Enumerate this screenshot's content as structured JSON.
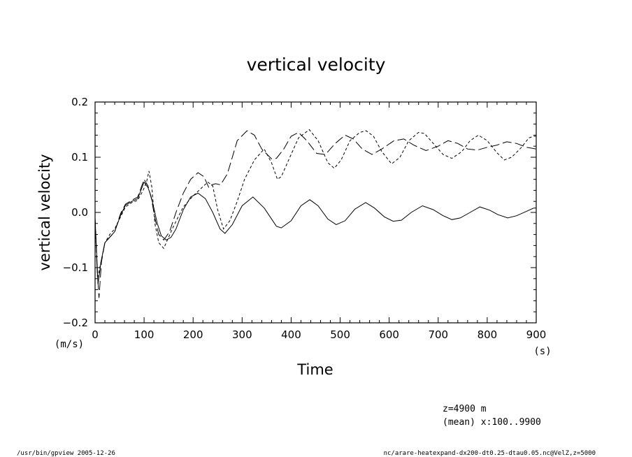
{
  "chart_data": {
    "type": "line",
    "title": "vertical velocity",
    "xlabel": "Time",
    "ylabel": "vertical velocity",
    "x_unit": "(s)",
    "y_unit": "(m/s)",
    "xlim": [
      0,
      900
    ],
    "ylim": [
      -0.2,
      0.2
    ],
    "xticks": [
      0,
      100,
      200,
      300,
      400,
      500,
      600,
      700,
      800,
      900
    ],
    "xtick_labels": [
      "0",
      "100",
      "200",
      "300",
      "400",
      "500",
      "600",
      "700",
      "800",
      "900"
    ],
    "yticks": [
      -0.2,
      -0.1,
      0.0,
      0.1,
      0.2
    ],
    "ytick_labels": [
      "−0.2",
      "−0.1",
      "0.0",
      "0.1",
      "0.2"
    ],
    "grid": false,
    "series": [
      {
        "style": "solid",
        "points": [
          [
            0,
            -0.01
          ],
          [
            6,
            -0.13
          ],
          [
            12,
            -0.09
          ],
          [
            20,
            -0.055
          ],
          [
            30,
            -0.045
          ],
          [
            40,
            -0.035
          ],
          [
            52,
            -0.005
          ],
          [
            62,
            0.013
          ],
          [
            75,
            0.02
          ],
          [
            87,
            0.025
          ],
          [
            100,
            0.055
          ],
          [
            108,
            0.045
          ],
          [
            114,
            0.03
          ],
          [
            120,
            0.008
          ],
          [
            127,
            -0.02
          ],
          [
            135,
            -0.042
          ],
          [
            145,
            -0.05
          ],
          [
            155,
            -0.045
          ],
          [
            165,
            -0.03
          ],
          [
            180,
            0.005
          ],
          [
            195,
            0.028
          ],
          [
            210,
            0.035
          ],
          [
            225,
            0.025
          ],
          [
            240,
            0.0
          ],
          [
            255,
            -0.03
          ],
          [
            265,
            -0.038
          ],
          [
            280,
            -0.022
          ],
          [
            300,
            0.012
          ],
          [
            322,
            0.028
          ],
          [
            345,
            0.008
          ],
          [
            370,
            -0.025
          ],
          [
            380,
            -0.028
          ],
          [
            400,
            -0.015
          ],
          [
            420,
            0.012
          ],
          [
            438,
            0.023
          ],
          [
            455,
            0.012
          ],
          [
            475,
            -0.012
          ],
          [
            492,
            -0.022
          ],
          [
            510,
            -0.015
          ],
          [
            530,
            0.006
          ],
          [
            552,
            0.018
          ],
          [
            570,
            0.008
          ],
          [
            590,
            -0.008
          ],
          [
            608,
            -0.016
          ],
          [
            625,
            -0.014
          ],
          [
            645,
            0.0
          ],
          [
            668,
            0.012
          ],
          [
            690,
            0.005
          ],
          [
            710,
            -0.006
          ],
          [
            728,
            -0.013
          ],
          [
            745,
            -0.01
          ],
          [
            765,
            0.0
          ],
          [
            785,
            0.01
          ],
          [
            805,
            0.004
          ],
          [
            822,
            -0.004
          ],
          [
            842,
            -0.01
          ],
          [
            860,
            -0.006
          ],
          [
            880,
            0.002
          ],
          [
            895,
            0.008
          ],
          [
            900,
            0.008
          ]
        ]
      },
      {
        "style": "dashed",
        "points": [
          [
            0,
            -0.015
          ],
          [
            5,
            -0.12
          ],
          [
            12,
            -0.09
          ],
          [
            20,
            -0.055
          ],
          [
            30,
            -0.04
          ],
          [
            40,
            -0.03
          ],
          [
            52,
            -0.008
          ],
          [
            62,
            0.01
          ],
          [
            75,
            0.018
          ],
          [
            87,
            0.022
          ],
          [
            98,
            0.04
          ],
          [
            105,
            0.055
          ],
          [
            110,
            0.075
          ],
          [
            116,
            0.045
          ],
          [
            122,
            -0.02
          ],
          [
            130,
            -0.055
          ],
          [
            140,
            -0.065
          ],
          [
            150,
            -0.045
          ],
          [
            160,
            -0.025
          ],
          [
            180,
            0.01
          ],
          [
            200,
            0.03
          ],
          [
            218,
            0.045
          ],
          [
            230,
            0.055
          ],
          [
            240,
            0.048
          ],
          [
            250,
            0.005
          ],
          [
            262,
            -0.03
          ],
          [
            275,
            -0.015
          ],
          [
            290,
            0.02
          ],
          [
            305,
            0.06
          ],
          [
            325,
            0.095
          ],
          [
            345,
            0.115
          ],
          [
            360,
            0.09
          ],
          [
            372,
            0.06
          ],
          [
            380,
            0.065
          ],
          [
            395,
            0.095
          ],
          [
            415,
            0.135
          ],
          [
            437,
            0.15
          ],
          [
            455,
            0.13
          ],
          [
            475,
            0.09
          ],
          [
            488,
            0.08
          ],
          [
            502,
            0.095
          ],
          [
            520,
            0.13
          ],
          [
            540,
            0.145
          ],
          [
            553,
            0.148
          ],
          [
            568,
            0.138
          ],
          [
            585,
            0.11
          ],
          [
            605,
            0.088
          ],
          [
            622,
            0.1
          ],
          [
            640,
            0.13
          ],
          [
            660,
            0.145
          ],
          [
            672,
            0.143
          ],
          [
            690,
            0.125
          ],
          [
            710,
            0.105
          ],
          [
            728,
            0.098
          ],
          [
            748,
            0.11
          ],
          [
            765,
            0.13
          ],
          [
            782,
            0.14
          ],
          [
            800,
            0.13
          ],
          [
            820,
            0.108
          ],
          [
            835,
            0.095
          ],
          [
            850,
            0.1
          ],
          [
            870,
            0.118
          ],
          [
            885,
            0.135
          ],
          [
            895,
            0.138
          ],
          [
            900,
            0.138
          ]
        ]
      },
      {
        "style": "longdash",
        "points": [
          [
            0,
            -0.01
          ],
          [
            4,
            -0.1
          ],
          [
            8,
            -0.155
          ],
          [
            13,
            -0.09
          ],
          [
            20,
            -0.055
          ],
          [
            30,
            -0.045
          ],
          [
            40,
            -0.035
          ],
          [
            52,
            -0.002
          ],
          [
            62,
            0.015
          ],
          [
            75,
            0.022
          ],
          [
            87,
            0.028
          ],
          [
            100,
            0.06
          ],
          [
            108,
            0.048
          ],
          [
            115,
            0.025
          ],
          [
            122,
            -0.01
          ],
          [
            130,
            -0.04
          ],
          [
            140,
            -0.05
          ],
          [
            152,
            -0.035
          ],
          [
            165,
            0.0
          ],
          [
            180,
            0.035
          ],
          [
            195,
            0.06
          ],
          [
            210,
            0.072
          ],
          [
            222,
            0.065
          ],
          [
            232,
            0.045
          ],
          [
            238,
            0.05
          ],
          [
            246,
            0.052
          ],
          [
            256,
            0.05
          ],
          [
            270,
            0.07
          ],
          [
            290,
            0.13
          ],
          [
            310,
            0.148
          ],
          [
            325,
            0.14
          ],
          [
            340,
            0.115
          ],
          [
            360,
            0.097
          ],
          [
            370,
            0.098
          ],
          [
            385,
            0.115
          ],
          [
            400,
            0.138
          ],
          [
            415,
            0.145
          ],
          [
            432,
            0.13
          ],
          [
            452,
            0.107
          ],
          [
            470,
            0.105
          ],
          [
            490,
            0.125
          ],
          [
            510,
            0.14
          ],
          [
            527,
            0.133
          ],
          [
            545,
            0.115
          ],
          [
            565,
            0.105
          ],
          [
            585,
            0.115
          ],
          [
            610,
            0.13
          ],
          [
            630,
            0.133
          ],
          [
            650,
            0.122
          ],
          [
            675,
            0.112
          ],
          [
            700,
            0.12
          ],
          [
            720,
            0.13
          ],
          [
            740,
            0.125
          ],
          [
            760,
            0.115
          ],
          [
            780,
            0.113
          ],
          [
            800,
            0.118
          ],
          [
            820,
            0.122
          ],
          [
            840,
            0.128
          ],
          [
            860,
            0.125
          ],
          [
            880,
            0.118
          ],
          [
            900,
            0.115
          ]
        ]
      }
    ]
  },
  "info": {
    "line1": "z=4900  m",
    "line2": "(mean) x:100..9900"
  },
  "footer": {
    "left": "/usr/bin/gpview   2005-12-26",
    "right": "nc/arare-heatexpand-dx200-dt0.25-dtau0.05.nc@VelZ,z=5000"
  }
}
